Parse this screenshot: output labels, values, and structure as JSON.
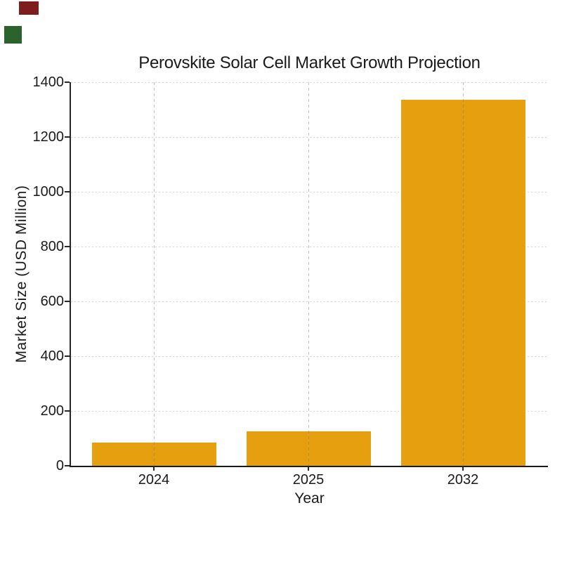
{
  "corner_patches": {
    "maroon_color": "#7D1D1D",
    "green_color": "#2C632C"
  },
  "chart_data": {
    "type": "bar",
    "title": "Perovskite Solar Cell Market Growth Projection",
    "xlabel": "Year",
    "ylabel": "Market Size (USD Million)",
    "categories": [
      "2024",
      "2025",
      "2032"
    ],
    "values": [
      85,
      125,
      1337
    ],
    "ylim": [
      0,
      1400
    ],
    "yticks": [
      0,
      200,
      400,
      600,
      800,
      1000,
      1200,
      1400
    ],
    "grid": true,
    "grid_style_horizontal": "dotted",
    "grid_style_vertical": "dashed",
    "legend": "none",
    "bar_color": "#E6A00F",
    "background_color": "#ffffff",
    "text_color": "#1a1a1a"
  }
}
